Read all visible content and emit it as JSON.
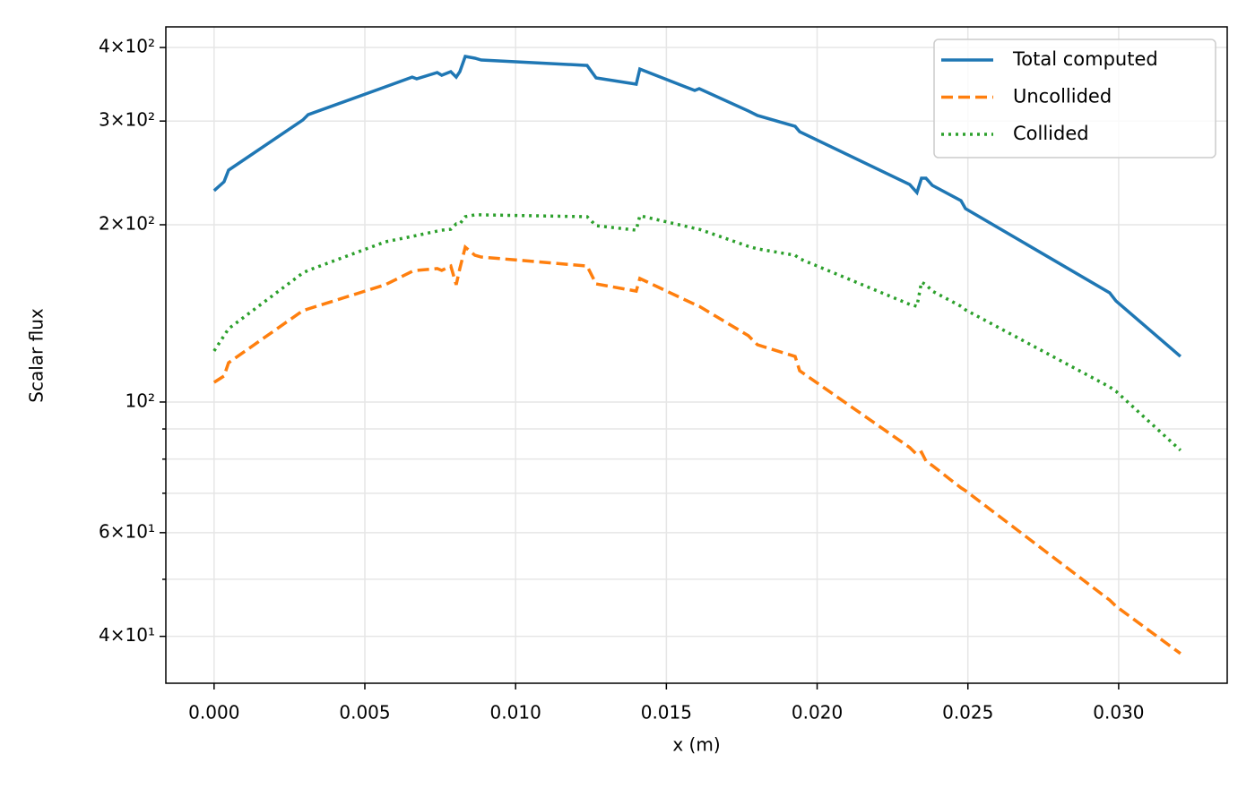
{
  "chart_data": {
    "type": "line",
    "xlabel": "x (m)",
    "ylabel": "Scalar flux",
    "x": [
      0,
      0.00033,
      0.00048,
      0.00294,
      0.00312,
      0.00568,
      0.00657,
      0.00672,
      0.0074,
      0.00755,
      0.00785,
      0.00803,
      0.00815,
      0.00833,
      0.00865,
      0.00886,
      0.01237,
      0.01267,
      0.014,
      0.01412,
      0.01594,
      0.01609,
      0.01772,
      0.01802,
      0.01927,
      0.01942,
      0.02307,
      0.02331,
      0.02346,
      0.02361,
      0.02382,
      0.02477,
      0.02492,
      0.0297,
      0.02991,
      0.03205
    ],
    "series": [
      {
        "name": "Total computed",
        "color": "#1f77b4",
        "linestyle": "solid",
        "values": [
          228.5,
          236.6,
          247.6,
          301.2,
          307.6,
          342.9,
          356.3,
          353.9,
          362.7,
          358.9,
          363.9,
          356.3,
          363.9,
          386.3,
          383.6,
          380.9,
          372.9,
          355.1,
          346.5,
          367.7,
          338.1,
          340.5,
          312.1,
          306.6,
          293.9,
          287.8,
          234.1,
          226.8,
          239.9,
          239.9,
          233.3,
          219.8,
          213.0,
          153.3,
          148.5,
          119.5
        ]
      },
      {
        "name": "Uncollided",
        "color": "#ff7f0e",
        "linestyle": "dashed",
        "values": [
          108.0,
          110.7,
          116.6,
          142.9,
          143.9,
          158.2,
          166.7,
          167.3,
          168.5,
          167.3,
          170.2,
          158.2,
          168.5,
          183.2,
          177.5,
          176.3,
          170.2,
          158.7,
          154.3,
          162.1,
          146.5,
          145.4,
          129.6,
          125.1,
          119.5,
          113.0,
          83.7,
          81.4,
          82.2,
          79.4,
          78.0,
          71.5,
          70.7,
          46.1,
          45.0,
          37.4
        ]
      },
      {
        "name": "Collided",
        "color": "#2ca02c",
        "linestyle": "dotted",
        "values": [
          122.1,
          129.6,
          133.2,
          165.6,
          167.3,
          187.1,
          191.1,
          191.8,
          195.1,
          195.8,
          196.5,
          200.7,
          200.7,
          206.4,
          207.9,
          207.9,
          206.4,
          199.3,
          195.8,
          207.2,
          197.2,
          196.5,
          183.8,
          182.0,
          177.5,
          175.1,
          146.5,
          145.4,
          159.8,
          158.2,
          154.3,
          145.4,
          143.4,
          106.1,
          104.3,
          82.8
        ]
      }
    ],
    "xlim": [
      -0.0016,
      0.0336
    ],
    "xticks": [
      {
        "value": 0,
        "label": "0.000"
      },
      {
        "value": 0.005,
        "label": "0.005"
      },
      {
        "value": 0.01,
        "label": "0.010"
      },
      {
        "value": 0.015,
        "label": "0.015"
      },
      {
        "value": 0.02,
        "label": "0.020"
      },
      {
        "value": 0.025,
        "label": "0.025"
      },
      {
        "value": 0.03,
        "label": "0.030"
      }
    ],
    "ylim": [
      33.3,
      433.6
    ],
    "yscale": "log",
    "yticks": [
      {
        "value": 40,
        "label": "4×10¹"
      },
      {
        "value": 60,
        "label": "6×10¹"
      },
      {
        "value": 100,
        "label": "10²"
      },
      {
        "value": 200,
        "label": "2×10²"
      },
      {
        "value": 300,
        "label": "3×10²"
      },
      {
        "value": 400,
        "label": "4×10²"
      }
    ],
    "yminorticks": [
      50,
      70,
      80,
      90
    ],
    "grid": true,
    "legend": "upper right"
  }
}
